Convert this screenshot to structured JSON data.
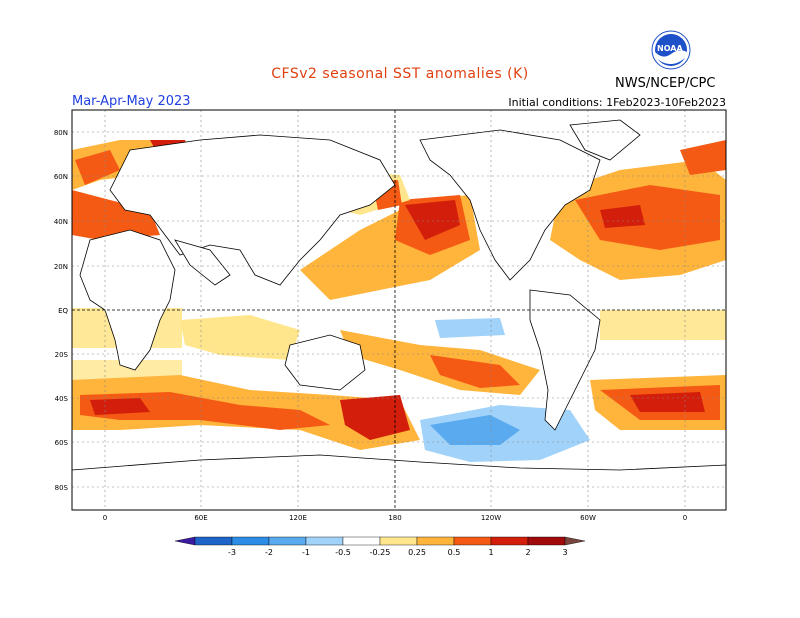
{
  "title": "CFSv2 seasonal SST anomalies (K)",
  "season": "Mar-Apr-May 2023",
  "initial_conditions": "Initial conditions: 1Feb2023-10Feb2023",
  "agency": "NWS/NCEP/CPC",
  "logo_text": "NOAA",
  "lat_labels": [
    "80N",
    "60N",
    "40N",
    "20N",
    "EQ",
    "20S",
    "40S",
    "60S",
    "80S"
  ],
  "lon_labels": [
    "0",
    "60E",
    "120E",
    "180",
    "120W",
    "60W",
    "0"
  ],
  "legend": {
    "labels": [
      "-3",
      "-2",
      "-1",
      "-0.5",
      "-0.25",
      "0.25",
      "0.5",
      "1",
      "2",
      "3"
    ],
    "colors": [
      "#3a1aa0",
      "#1e64c8",
      "#2c8ce6",
      "#5aaaf0",
      "#a0d2fa",
      "#ffffff",
      "#ffe68c",
      "#ffb43c",
      "#f55a14",
      "#d21e0a",
      "#a00a0a",
      "#78463c"
    ]
  },
  "colors": {
    "ocean": "#ffffff",
    "land_outline": "#000000",
    "title": "#e04010",
    "season": "#2040e0",
    "noaa_blue": "#1e50c8"
  }
}
